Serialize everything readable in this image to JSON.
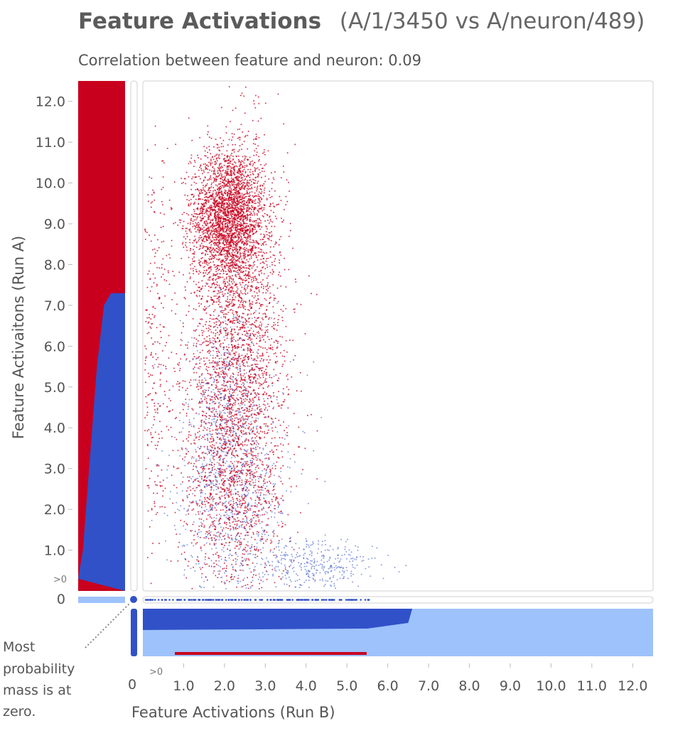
{
  "chart_data": {
    "type": "scatter",
    "title": "Feature Activations",
    "title_suffix": "(A/1/3450 vs A/neuron/489)",
    "subtitle": "Correlation between feature and neuron: 0.09",
    "xlabel": "Feature Activations (Run B)",
    "ylabel": "Feature Activaitons (Run A)",
    "xlim": [
      0,
      12.5
    ],
    "ylim": [
      0,
      12.5
    ],
    "x_ticks": [
      1.0,
      2.0,
      3.0,
      4.0,
      5.0,
      6.0,
      7.0,
      8.0,
      9.0,
      10.0,
      11.0,
      12.0
    ],
    "y_ticks": [
      1.0,
      2.0,
      3.0,
      4.0,
      5.0,
      6.0,
      7.0,
      8.0,
      9.0,
      10.0,
      11.0,
      12.0
    ],
    "x_tick_labels": [
      "1.0",
      "2.0",
      "3.0",
      "4.0",
      "5.0",
      "6.0",
      "7.0",
      "8.0",
      "9.0",
      "10.0",
      "11.0",
      "12.0"
    ],
    "y_tick_labels": [
      "1.0",
      "2.0",
      "3.0",
      "4.0",
      "5.0",
      "6.0",
      "7.0",
      "8.0",
      "9.0",
      "10.0",
      "11.0",
      "12.0"
    ],
    "gt_zero_label": ">0",
    "zero_label": "0",
    "annotation": [
      "Most",
      "probability",
      "mass is at",
      "zero."
    ],
    "grid": false,
    "colors": {
      "red": "#c8001e",
      "blue": "#3151c8",
      "light_blue": "#9ec2fb",
      "frame": "#d0d0d0"
    },
    "clusters": [
      {
        "color": "red",
        "center": [
          2.1,
          9.2
        ],
        "spread": [
          0.45,
          0.8
        ],
        "count": 2600
      },
      {
        "color": "red",
        "center": [
          2.3,
          6.5
        ],
        "spread": [
          0.6,
          2.2
        ],
        "count": 2200
      },
      {
        "color": "red",
        "center": [
          2.2,
          3.0
        ],
        "spread": [
          0.65,
          1.8
        ],
        "count": 1500
      },
      {
        "color": "red",
        "center": [
          0.2,
          6.0
        ],
        "spread": [
          0.25,
          2.5
        ],
        "count": 350
      },
      {
        "color": "blue",
        "center": [
          2.2,
          2.5
        ],
        "spread": [
          0.7,
          1.6
        ],
        "count": 900
      },
      {
        "color": "blue",
        "center": [
          4.3,
          0.6
        ],
        "spread": [
          0.7,
          0.35
        ],
        "count": 350
      },
      {
        "color": "blue",
        "center": [
          2.0,
          5.0
        ],
        "spread": [
          0.4,
          1.2
        ],
        "count": 250
      }
    ],
    "left_histogram": {
      "blue_right_edge": [
        [
          0.3,
          1.0
        ],
        [
          1.0,
          0.9
        ],
        [
          2.5,
          0.8
        ],
        [
          4.0,
          0.7
        ],
        [
          5.5,
          0.6
        ],
        [
          7.0,
          0.45
        ],
        [
          7.3,
          0.3
        ]
      ]
    },
    "bottom_histogram": {
      "blue_band_top": [
        [
          0.0,
          0.25
        ],
        [
          5.5,
          0.22
        ],
        [
          6.5,
          0.15
        ],
        [
          6.6,
          0.02
        ]
      ],
      "light_region_start": 6.6
    }
  }
}
